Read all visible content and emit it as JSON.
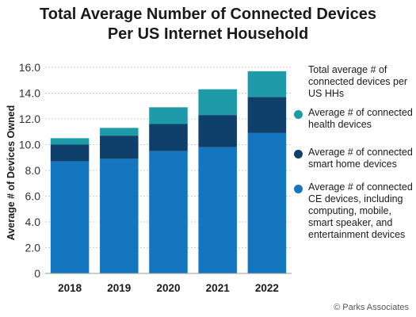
{
  "title_line1": "Total Average Number of Connected Devices",
  "title_line2": "Per US Internet Household",
  "source": "© Parks Associates",
  "colors": {
    "health": "#1f9aa8",
    "smart_home": "#0f3f6b",
    "ce": "#1576c0",
    "grid": "#cfcfcf",
    "axis_text": "#333333"
  },
  "legend": {
    "title": "Total average # of connected devices per US HHs",
    "items": [
      {
        "name": "health",
        "label": "Average # of connected health devices",
        "color": "#1f9aa8"
      },
      {
        "name": "smart-home",
        "label": "Average # of connected smart home devices",
        "color": "#0f3f6b"
      },
      {
        "name": "ce",
        "label": "Average # of connected CE devices, including computing, mobile, smart speaker, and entertainment devices",
        "color": "#1576c0"
      }
    ]
  },
  "chart_data": {
    "type": "bar",
    "stacked": true,
    "categories": [
      "2018",
      "2019",
      "2020",
      "2021",
      "2022"
    ],
    "series": [
      {
        "name": "Average # of connected CE devices, including computing, mobile, smart speaker, and entertainment devices",
        "values": [
          8.7,
          8.9,
          9.5,
          9.8,
          10.9
        ]
      },
      {
        "name": "Average # of connected smart home devices",
        "values": [
          1.3,
          1.8,
          2.1,
          2.5,
          2.8
        ]
      },
      {
        "name": "Average # of connected health devices",
        "values": [
          0.5,
          0.6,
          1.3,
          2.0,
          2.0
        ]
      }
    ],
    "ylabel": "Average # of Devices Owned",
    "ylim": [
      0,
      16
    ],
    "yticks": [
      "0",
      "2.0",
      "4.0",
      "6.0",
      "8.0",
      "10.0",
      "12.0",
      "14.0",
      "16.0"
    ],
    "grid": true,
    "legend_position": "right"
  }
}
